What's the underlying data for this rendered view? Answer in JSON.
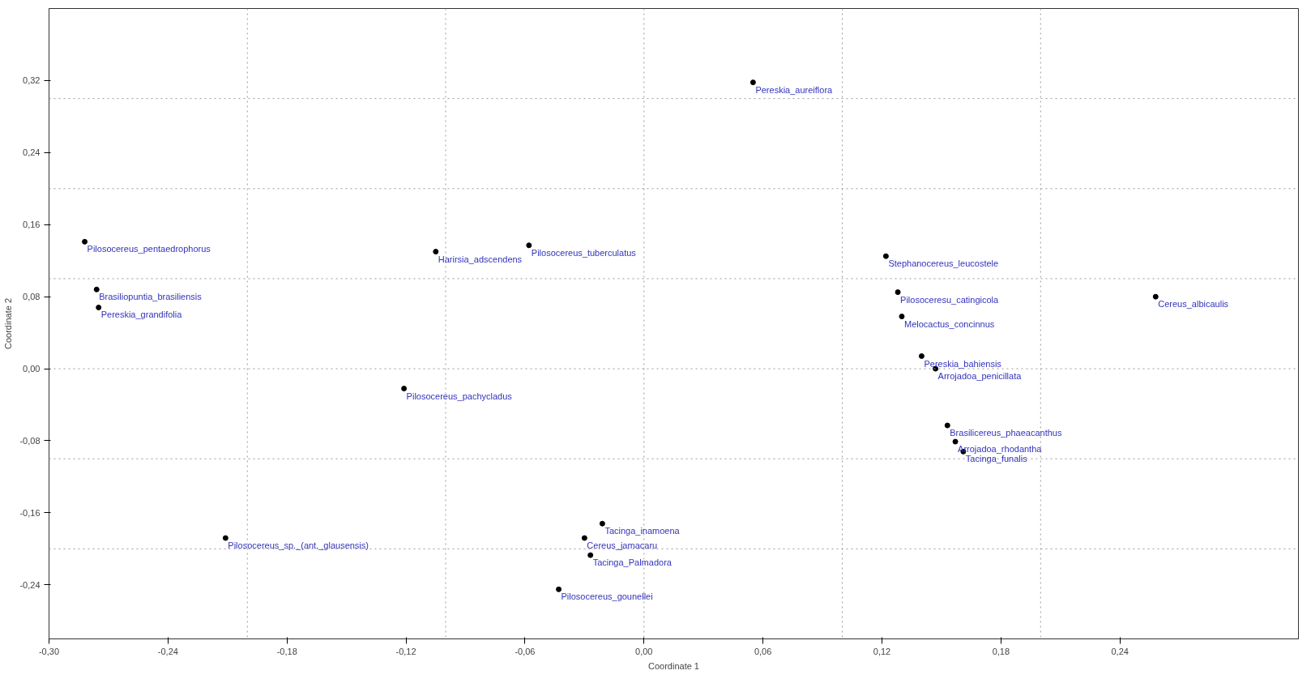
{
  "chart_data": {
    "type": "scatter",
    "xlabel": "Coordinate 1",
    "ylabel": "Coordinate 2",
    "marker": "circle",
    "grid": false,
    "xlim": [
      -0.3,
      0.33
    ],
    "ylim": [
      -0.3,
      0.4
    ],
    "xticks": [
      {
        "value": -0.3,
        "label": "-0,30"
      },
      {
        "value": -0.24,
        "label": "-0,24"
      },
      {
        "value": -0.18,
        "label": "-0,18"
      },
      {
        "value": -0.12,
        "label": "-0,12"
      },
      {
        "value": -0.06,
        "label": "-0,06"
      },
      {
        "value": 0.0,
        "label": "0,00"
      },
      {
        "value": 0.06,
        "label": "0,06"
      },
      {
        "value": 0.12,
        "label": "0,12"
      },
      {
        "value": 0.18,
        "label": "0,18"
      },
      {
        "value": 0.24,
        "label": "0,24"
      }
    ],
    "yticks": [
      {
        "value": -0.24,
        "label": "-0,24"
      },
      {
        "value": -0.16,
        "label": "-0,16"
      },
      {
        "value": -0.08,
        "label": "-0,08"
      },
      {
        "value": 0.0,
        "label": "0,00"
      },
      {
        "value": 0.08,
        "label": "0,08"
      },
      {
        "value": 0.16,
        "label": "0,16"
      },
      {
        "value": 0.24,
        "label": "0,24"
      },
      {
        "value": 0.32,
        "label": "0,32"
      }
    ],
    "series": [
      {
        "color": "#000000",
        "x": [
          -0.282,
          -0.276,
          -0.275,
          -0.105,
          -0.058,
          0.055,
          0.122,
          0.128,
          0.13,
          0.258,
          -0.121,
          -0.211,
          -0.021,
          -0.03,
          -0.027,
          -0.043,
          0.14,
          0.147,
          0.153,
          0.157,
          0.161
        ],
        "values": [
          0.141,
          0.088,
          0.068,
          0.13,
          0.137,
          0.318,
          0.125,
          0.085,
          0.058,
          0.08,
          -0.022,
          -0.188,
          -0.172,
          -0.188,
          -0.207,
          -0.245,
          0.014,
          0.0,
          -0.063,
          -0.081,
          -0.092
        ]
      }
    ],
    "annotations": [
      {
        "text": "Pilosocereus_pentaedrophorus",
        "x": -0.282,
        "y": 0.141
      },
      {
        "text": "Brasiliopuntia_brasiliensis",
        "x": -0.276,
        "y": 0.088
      },
      {
        "text": "Pereskia_grandifolia",
        "x": -0.275,
        "y": 0.068
      },
      {
        "text": "Harirsia_adscendens",
        "x": -0.105,
        "y": 0.13
      },
      {
        "text": "Pilosocereus_tuberculatus",
        "x": -0.058,
        "y": 0.137
      },
      {
        "text": "Pereskia_aureiflora",
        "x": 0.055,
        "y": 0.318
      },
      {
        "text": "Stephanocereus_leucostele",
        "x": 0.122,
        "y": 0.125
      },
      {
        "text": "Pilosoceresu_catingicola",
        "x": 0.128,
        "y": 0.085
      },
      {
        "text": "Melocactus_concinnus",
        "x": 0.13,
        "y": 0.058
      },
      {
        "text": "Cereus_albicaulis",
        "x": 0.258,
        "y": 0.08
      },
      {
        "text": "Pilosocereus_pachycladus",
        "x": -0.121,
        "y": -0.022
      },
      {
        "text": "Pilosocereus_sp._(ant._glausensis)",
        "x": -0.211,
        "y": -0.188
      },
      {
        "text": "Tacinga_inamoena",
        "x": -0.021,
        "y": -0.172
      },
      {
        "text": "Cereus_jamacaru",
        "x": -0.03,
        "y": -0.188
      },
      {
        "text": "Tacinga_Palmadora",
        "x": -0.027,
        "y": -0.207
      },
      {
        "text": "Pilosocereus_gounellei",
        "x": -0.043,
        "y": -0.245
      },
      {
        "text": "Pereskia_bahiensis",
        "x": 0.14,
        "y": 0.014
      },
      {
        "text": "Arrojadoa_penicillata",
        "x": 0.147,
        "y": 0.0
      },
      {
        "text": "Brasilicereus_phaeacanthus",
        "x": 0.153,
        "y": -0.063
      },
      {
        "text": "Arrojadoa_rhodantha",
        "x": 0.157,
        "y": -0.081
      },
      {
        "text": "Tacinga_funalis",
        "x": 0.161,
        "y": -0.092
      }
    ],
    "ref_lines": [
      {
        "axis": "x",
        "value": -0.2,
        "color": "#999999",
        "line_style": "dotted"
      },
      {
        "axis": "x",
        "value": -0.1,
        "color": "#999999",
        "line_style": "dotted"
      },
      {
        "axis": "x",
        "value": 0.0,
        "color": "#999999",
        "line_style": "dotted"
      },
      {
        "axis": "x",
        "value": 0.1,
        "color": "#999999",
        "line_style": "dotted"
      },
      {
        "axis": "x",
        "value": 0.2,
        "color": "#999999",
        "line_style": "dotted"
      },
      {
        "axis": "y",
        "value": 0.3,
        "color": "#999999",
        "line_style": "dotted"
      },
      {
        "axis": "y",
        "value": 0.2,
        "color": "#999999",
        "line_style": "dotted"
      },
      {
        "axis": "y",
        "value": 0.1,
        "color": "#999999",
        "line_style": "dotted"
      },
      {
        "axis": "y",
        "value": 0.0,
        "color": "#999999",
        "line_style": "dotted"
      },
      {
        "axis": "y",
        "value": -0.1,
        "color": "#999999",
        "line_style": "dotted"
      },
      {
        "axis": "y",
        "value": -0.2,
        "color": "#999999",
        "line_style": "dotted"
      }
    ]
  }
}
